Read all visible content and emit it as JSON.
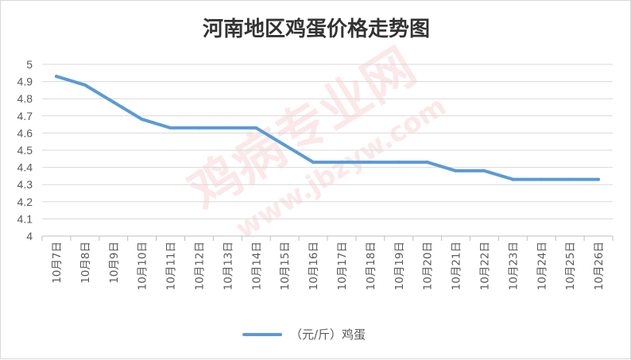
{
  "chart_data": {
    "type": "line",
    "title": "河南地区鸡蛋价格走势图",
    "categories": [
      "10月7日",
      "10月8日",
      "10月9日",
      "10月10日",
      "10月11日",
      "10月12日",
      "10月13日",
      "10月14日",
      "10月15日",
      "10月16日",
      "10月17日",
      "10月18日",
      "10月19日",
      "10月20日",
      "10月21日",
      "10月22日",
      "10月23日",
      "10月24日",
      "10月25日",
      "10月26日"
    ],
    "series": [
      {
        "name": "（元/斤）鸡蛋",
        "color": "#5b9bd5",
        "values": [
          4.93,
          4.88,
          4.78,
          4.68,
          4.63,
          4.63,
          4.63,
          4.63,
          4.53,
          4.43,
          4.43,
          4.43,
          4.43,
          4.43,
          4.38,
          4.38,
          4.33,
          4.33,
          4.33,
          4.33
        ]
      }
    ],
    "ylim": [
      4,
      5
    ],
    "ytick_step": 0.1,
    "yticks": [
      "4",
      "4.1",
      "4.2",
      "4.3",
      "4.4",
      "4.5",
      "4.6",
      "4.7",
      "4.8",
      "4.9",
      "5"
    ],
    "grid": true,
    "legend_position": "bottom",
    "xlabel": "",
    "ylabel": ""
  },
  "watermark": {
    "text": "鸡病专业网",
    "url": "www.jbzyw.com",
    "color": "#e8787a"
  }
}
